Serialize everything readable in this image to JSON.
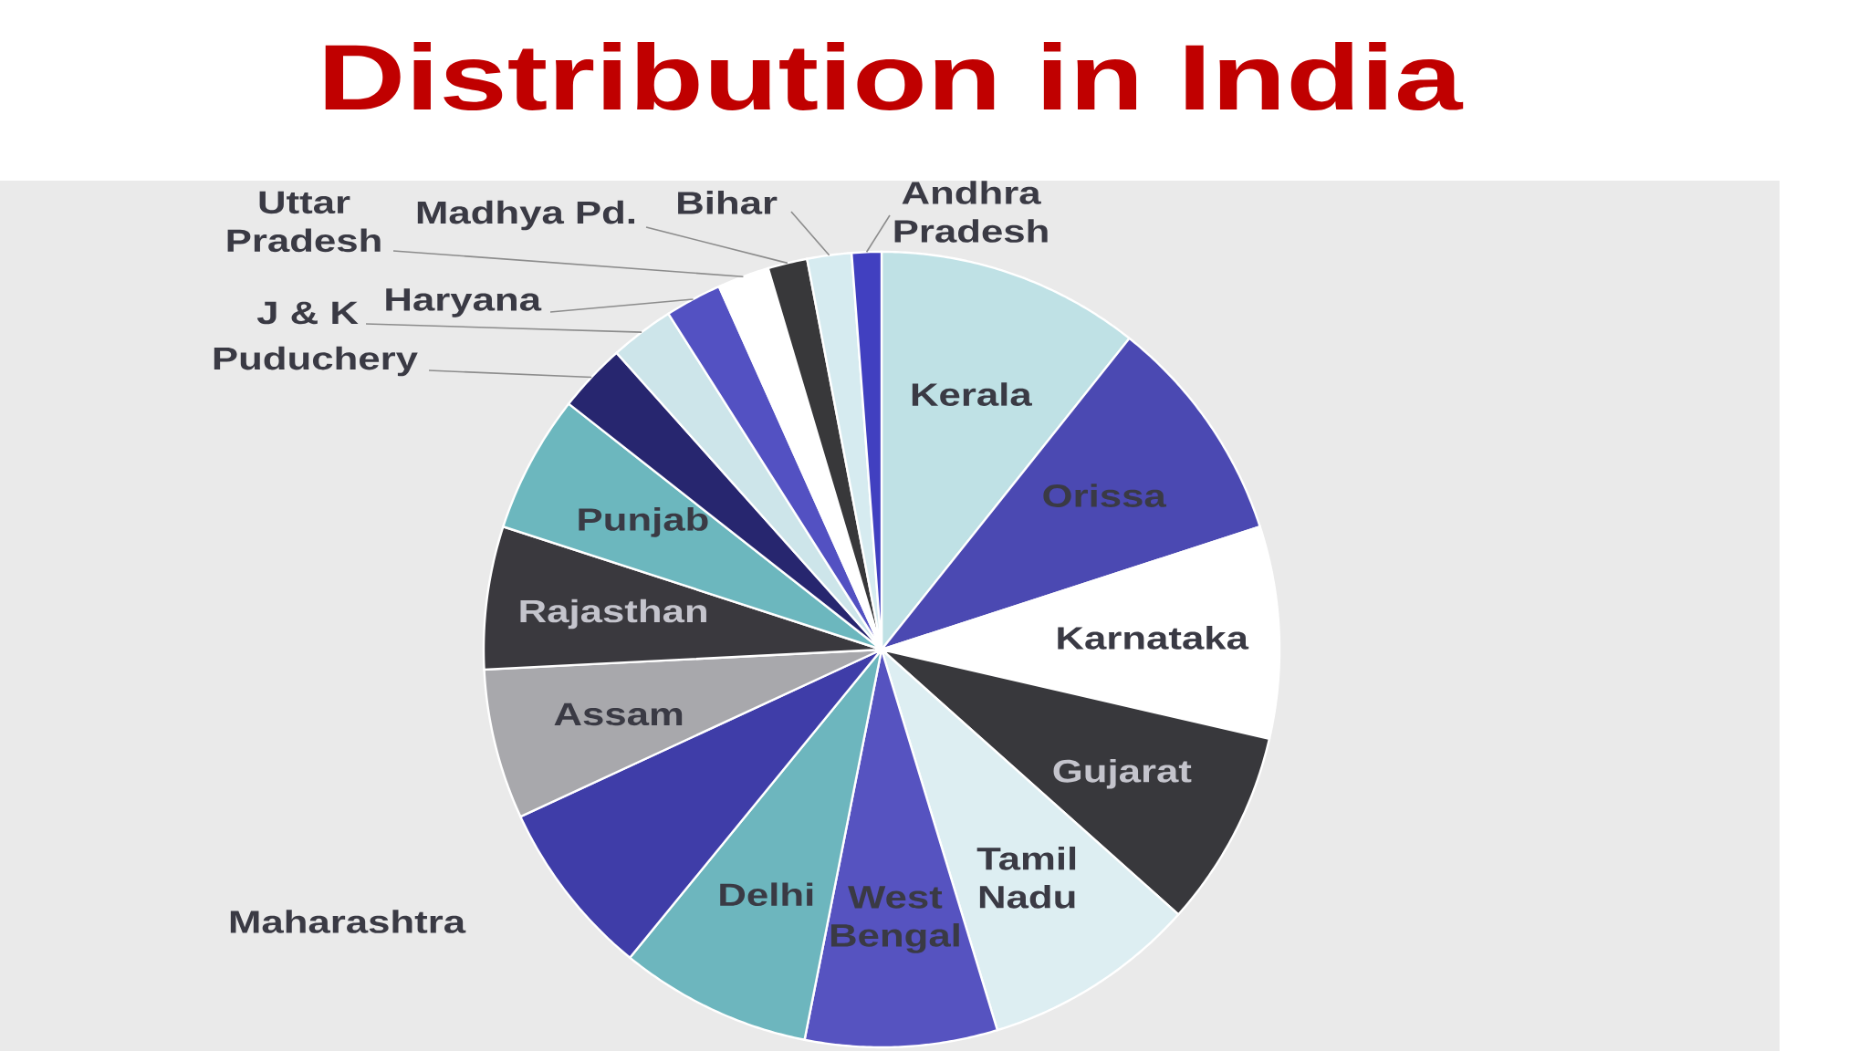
{
  "chart_data": {
    "type": "pie",
    "title": "Distribution in India",
    "categories": [
      "Kerala",
      "Orissa",
      "Karnataka",
      "Gujarat",
      "Tamil Nadu",
      "West Bengal",
      "Delhi",
      "Maharashtra",
      "Assam",
      "Rajasthan",
      "Punjab",
      "Puduchery",
      "J & K",
      "Haryana",
      "Uttar Pradesh",
      "Madhya Pd.",
      "Bihar",
      "Andhra Pradesh"
    ],
    "values": [
      10.7,
      9.3,
      8.6,
      8.0,
      8.7,
      7.8,
      7.8,
      7.2,
      6.1,
      5.8,
      5.6,
      2.8,
      2.6,
      2.3,
      2.1,
      1.6,
      1.8,
      1.2
    ],
    "colors": [
      "#bfe1e5",
      "#4b49b2",
      "#ffffff",
      "#38383c",
      "#ddeef2",
      "#5653c0",
      "#6db6be",
      "#3f3da8",
      "#a8a8ac",
      "#3a393e",
      "#6cb7be",
      "#27266f",
      "#cde5ea",
      "#5351c2",
      "#ffffff",
      "#38383a",
      "#d6ebf0",
      "#4140c0"
    ]
  }
}
